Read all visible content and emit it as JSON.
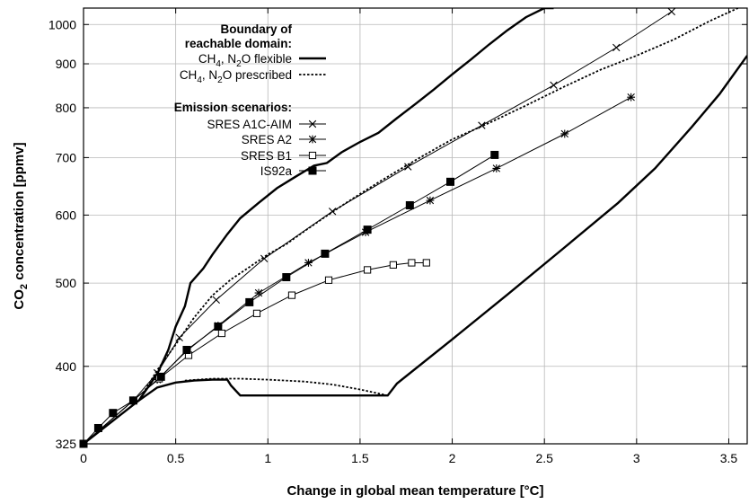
{
  "chart_data": {
    "type": "line",
    "xlabel": "Change in global mean temperature [°C]",
    "ylabel_parts": [
      "CO",
      "2",
      " concentration  [ppmv]"
    ],
    "xlim": [
      0,
      3.6
    ],
    "ylim": [
      325,
      1045
    ],
    "y_scale": "log",
    "x_ticks": [
      0,
      0.5,
      1,
      1.5,
      2,
      2.5,
      3,
      3.5
    ],
    "x_tick_labels": [
      "0",
      "0.5",
      "1",
      "1.5",
      "2",
      "2.5",
      "3",
      "3.5"
    ],
    "y_ticks": [
      325,
      400,
      500,
      600,
      700,
      800,
      900,
      1000
    ],
    "y_tick_labels": [
      "325",
      "400",
      "500",
      "600",
      "700",
      "800",
      "900",
      "1000"
    ],
    "grid": true,
    "legend": {
      "placement": "top-left",
      "boundary_title_lines": [
        "Boundary of",
        "reachable domain:"
      ],
      "scenario_title": "Emission scenarios:",
      "entries": [
        {
          "key": "flexible",
          "parts": [
            "CH",
            "4",
            ", N",
            "2",
            "O flexible"
          ]
        },
        {
          "key": "prescribed",
          "parts": [
            "CH",
            "4",
            ", N",
            "2",
            "O prescribed"
          ]
        },
        {
          "key": "a1c",
          "parts": [
            "SRES A1C-AIM"
          ]
        },
        {
          "key": "a2",
          "parts": [
            "SRES A2"
          ]
        },
        {
          "key": "b1",
          "parts": [
            "SRES B1"
          ]
        },
        {
          "key": "is92a",
          "parts": [
            "IS92a"
          ]
        }
      ]
    },
    "boundary_series": [
      {
        "key": "flexible",
        "style": "solid-thick",
        "x": [
          0,
          0.3,
          0.4,
          0.46,
          0.5,
          0.55,
          0.58,
          0.65,
          0.7,
          0.78,
          0.85,
          0.95,
          1.05,
          1.15,
          1.25,
          1.32,
          1.4,
          1.5,
          1.6,
          1.7,
          1.8,
          1.9,
          2.0,
          2.1,
          2.2,
          2.3,
          2.4,
          2.5,
          2.55
        ],
        "y": [
          325,
          365,
          392,
          418,
          445,
          470,
          500,
          520,
          540,
          570,
          595,
          620,
          645,
          665,
          685,
          690,
          710,
          730,
          748,
          778,
          808,
          840,
          875,
          910,
          948,
          985,
          1020,
          1045,
          1045
        ]
      },
      {
        "key": "flexible-lower",
        "style": "solid-thick",
        "x": [
          0.3,
          0.4,
          0.5,
          0.6,
          0.7,
          0.78,
          0.8,
          0.85,
          1.0,
          1.3,
          1.5,
          1.65,
          1.7,
          2.0,
          2.3,
          2.6,
          2.9,
          3.1,
          3.3,
          3.45,
          3.6
        ],
        "y": [
          365,
          378,
          383,
          385,
          386,
          386,
          380,
          370,
          370,
          370,
          370,
          370,
          382,
          430,
          485,
          548,
          620,
          680,
          760,
          830,
          920
        ]
      },
      {
        "key": "prescribed",
        "style": "dashed",
        "x": [
          0.3,
          0.4,
          0.5,
          0.6,
          0.7,
          0.8,
          0.9,
          1.0,
          1.1,
          1.2,
          1.3,
          1.4,
          1.5,
          1.6,
          1.7,
          1.8,
          1.9,
          2.0,
          2.2,
          2.4,
          2.6,
          2.8,
          3.0,
          3.2,
          3.4,
          3.55
        ],
        "y": [
          365,
          396,
          424,
          456,
          484,
          505,
          522,
          540,
          555,
          575,
          595,
          615,
          635,
          655,
          675,
          695,
          715,
          735,
          768,
          805,
          845,
          885,
          920,
          960,
          1010,
          1045
        ]
      },
      {
        "key": "prescribed-lower",
        "style": "dashed",
        "x": [
          0.55,
          0.7,
          0.85,
          1.0,
          1.2,
          1.35,
          1.5,
          1.65
        ],
        "y": [
          385,
          387,
          387,
          386,
          384,
          381,
          376,
          370
        ]
      }
    ],
    "series": [
      {
        "name": "SRES A1C-AIM",
        "marker": "x",
        "x": [
          0,
          0.27,
          0.4,
          0.52,
          0.72,
          0.98,
          1.35,
          1.76,
          2.16,
          2.55,
          2.89,
          3.19
        ],
        "y": [
          325,
          365,
          393,
          432,
          478,
          534,
          606,
          683,
          763,
          850,
          940,
          1035
        ]
      },
      {
        "name": "SRES A2",
        "marker": "star",
        "x": [
          0,
          0.27,
          0.4,
          0.56,
          0.73,
          0.95,
          1.22,
          1.53,
          1.88,
          2.24,
          2.61,
          2.97
        ],
        "y": [
          325,
          365,
          386,
          417,
          446,
          487,
          528,
          573,
          624,
          680,
          746,
          823
        ]
      },
      {
        "name": "SRES B1",
        "marker": "open-square",
        "x": [
          0,
          0.27,
          0.41,
          0.57,
          0.75,
          0.94,
          1.13,
          1.33,
          1.54,
          1.68,
          1.78,
          1.86
        ],
        "y": [
          325,
          365,
          387,
          412,
          437,
          461,
          484,
          504,
          518,
          525,
          528,
          528
        ]
      },
      {
        "name": "IS92a",
        "marker": "filled-square",
        "x": [
          0,
          0.08,
          0.16,
          0.27,
          0.42,
          0.56,
          0.73,
          0.9,
          1.1,
          1.31,
          1.54,
          1.77,
          1.99,
          2.23
        ],
        "y": [
          325,
          339,
          353,
          365,
          389,
          418,
          445,
          475,
          508,
          541,
          577,
          616,
          656,
          705
        ]
      }
    ]
  }
}
